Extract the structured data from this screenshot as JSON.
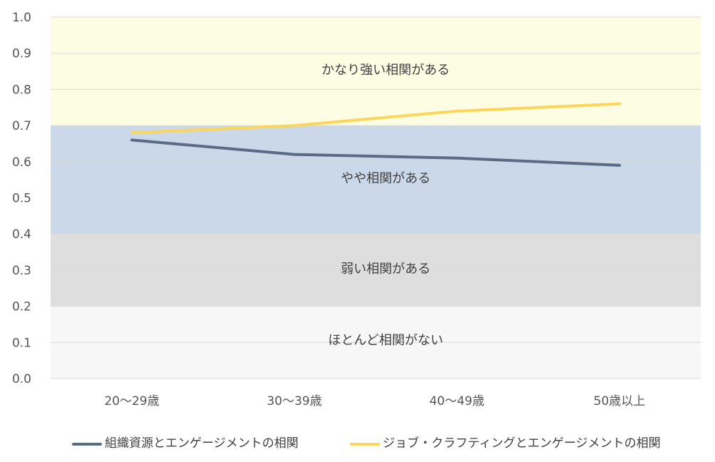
{
  "chart_data": {
    "type": "line",
    "categories": [
      "20〜29歳",
      "30〜39歳",
      "40〜49歳",
      "50歳以上"
    ],
    "ylim": [
      0.0,
      1.0
    ],
    "yticks": [
      "0.0",
      "0.1",
      "0.2",
      "0.3",
      "0.4",
      "0.5",
      "0.6",
      "0.7",
      "0.8",
      "0.9",
      "1.0"
    ],
    "grid": true,
    "legend_position": "bottom",
    "bands": [
      {
        "label": "ほとんど相関がない",
        "range": [
          0.0,
          0.2
        ],
        "color": "#f7f7f7"
      },
      {
        "label": "弱い相関がある",
        "range": [
          0.2,
          0.4
        ],
        "color": "#dedede"
      },
      {
        "label": "やや相関がある",
        "range": [
          0.4,
          0.7
        ],
        "color": "#cad8ea"
      },
      {
        "label": "かなり強い相関がある",
        "range": [
          0.7,
          1.0
        ],
        "color": "#fdfde3"
      }
    ],
    "series": [
      {
        "name": "組織資源とエンゲージメントの相関",
        "values": [
          0.66,
          0.62,
          0.61,
          0.59
        ],
        "color": "#5b6b85"
      },
      {
        "name": "ジョブ・クラフティングとエンゲージメントの相関",
        "values": [
          0.68,
          0.7,
          0.74,
          0.76
        ],
        "color": "#fcd65a"
      }
    ]
  }
}
